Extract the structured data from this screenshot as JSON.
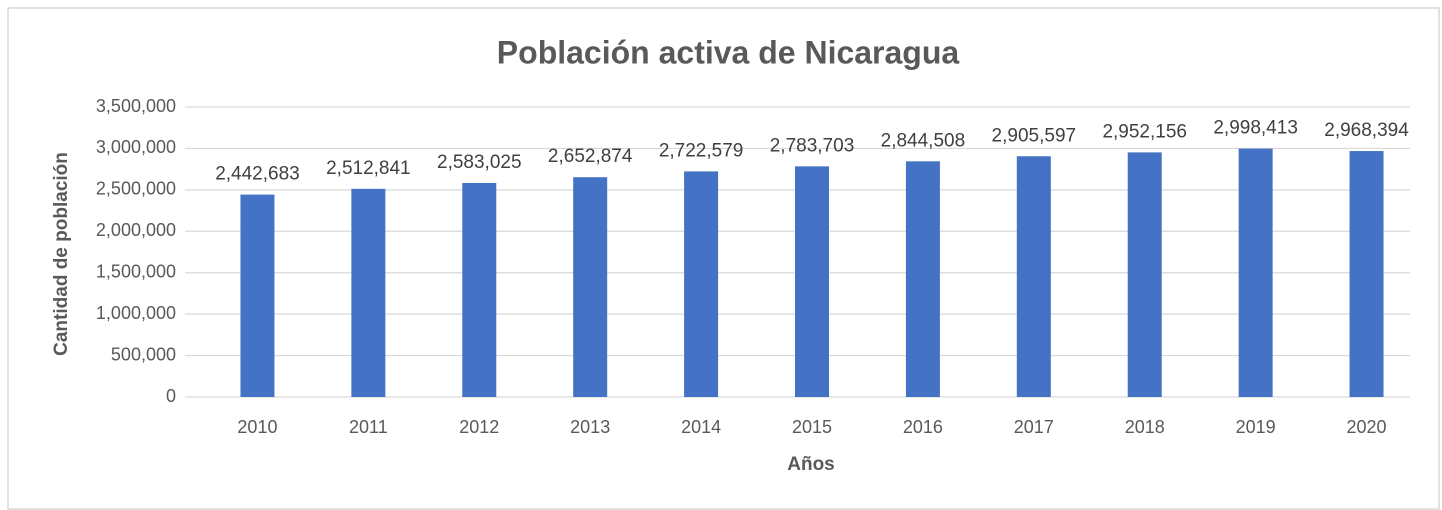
{
  "chart_data": {
    "type": "bar",
    "title": "Población activa de Nicaragua",
    "x_label": "Años",
    "y_label": "Cantidad de población",
    "categories": [
      "2010",
      "2011",
      "2012",
      "2013",
      "2014",
      "2015",
      "2016",
      "2017",
      "2018",
      "2019",
      "2020"
    ],
    "values": [
      2442683,
      2512841,
      2583025,
      2652874,
      2722579,
      2783703,
      2844508,
      2905597,
      2952156,
      2998413,
      2968394
    ],
    "value_labels": [
      "2,442,683",
      "2,512,841",
      "2,583,025",
      "2,652,874",
      "2,722,579",
      "2,783,703",
      "2,844,508",
      "2,905,597",
      "2,952,156",
      "2,998,413",
      "2,968,394"
    ],
    "color": "#4472c4",
    "ylim": [
      0,
      3500000
    ],
    "yticks": [
      0,
      {
        "value": 500000,
        "label": "500,000"
      },
      {
        "value": 1000000,
        "label": "1,000,000"
      },
      {
        "value": 1500000,
        "label": "1,500,000"
      },
      {
        "value": 2000000,
        "label": "2,000,000"
      },
      {
        "value": 2500000,
        "label": "2,500,000"
      },
      {
        "value": 3000000,
        "label": "3,000,000"
      },
      {
        "value": 3500000,
        "label": "3,500,000"
      }
    ],
    "grid": true
  }
}
